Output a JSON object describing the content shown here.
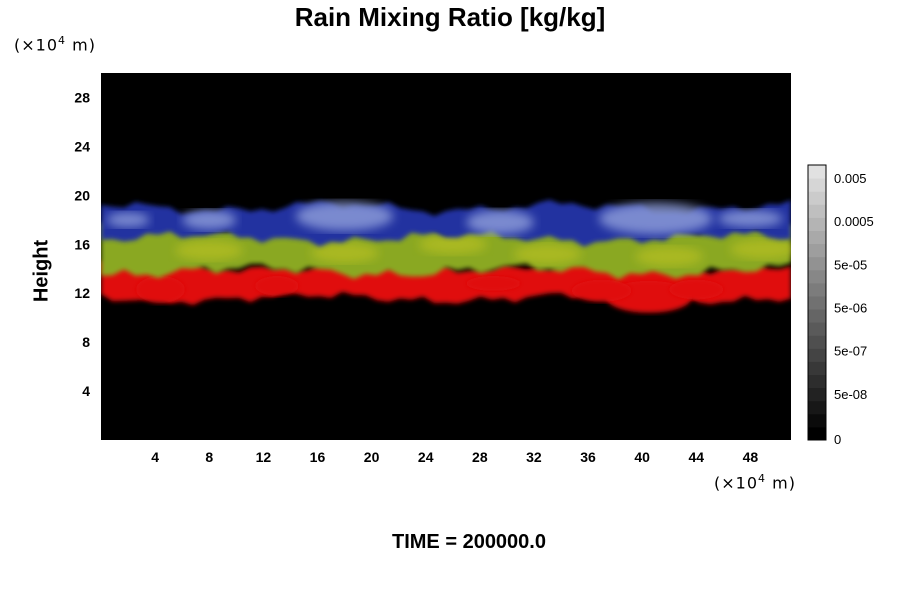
{
  "chart_data": {
    "type": "heatmap",
    "title": "Rain Mixing Ratio [kg/kg]",
    "ylabel": "Height",
    "xlabel": "",
    "x_unit": {
      "prefix": "(×10",
      "exp": "4",
      "suffix": " m)"
    },
    "y_unit": {
      "prefix": "(×10",
      "exp": "4",
      "suffix": " m)"
    },
    "xlim": [
      0,
      51
    ],
    "ylim": [
      0,
      30
    ],
    "x_ticks": [
      "4",
      "8",
      "12",
      "16",
      "20",
      "24",
      "28",
      "32",
      "36",
      "40",
      "44",
      "48"
    ],
    "y_ticks": [
      "4",
      "8",
      "12",
      "16",
      "20",
      "24",
      "28"
    ],
    "colorbar": {
      "labels": [
        "0",
        "5e-08",
        "5e-07",
        "5e-06",
        "5e-05",
        "0.0005",
        "0.005"
      ],
      "levels": 21
    },
    "bands": [
      {
        "name": "red",
        "color": "#e01010",
        "height_range": [
          11,
          14.2
        ]
      },
      {
        "name": "green",
        "color": "#8aa820",
        "height_range": [
          13.8,
          17.5
        ]
      },
      {
        "name": "blue",
        "color": "#2030a0",
        "height_range": [
          16.5,
          19.8
        ]
      }
    ],
    "footer": "TIME = 200000.0"
  }
}
